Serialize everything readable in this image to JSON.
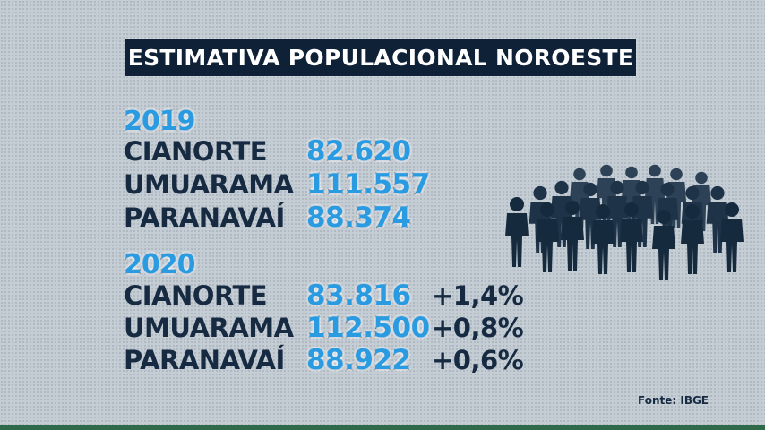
{
  "title": "ESTIMATIVA POPULACIONAL NOROESTE",
  "sections": [
    {
      "year": "2019",
      "rows": [
        {
          "city": "CIANORTE",
          "value": "82.620"
        },
        {
          "city": "UMUARAMA",
          "value": "111.557"
        },
        {
          "city": "PARANAVAÍ",
          "value": "88.374"
        }
      ]
    },
    {
      "year": "2020",
      "rows": [
        {
          "city": "CIANORTE",
          "value": "83.816",
          "change": "+1,4%"
        },
        {
          "city": "UMUARAMA",
          "value": "112.500",
          "change": "+0,8%"
        },
        {
          "city": "PARANAVAÍ",
          "value": "88.922",
          "change": "+0,6%"
        }
      ]
    }
  ],
  "source": "Fonte: IBGE",
  "icons": {
    "crowd": "crowd-icon"
  },
  "colors": {
    "title_bg": "#0f2137",
    "number_fill": "#2a9be0",
    "text": "#162a42",
    "background": "#c4ccd4"
  }
}
